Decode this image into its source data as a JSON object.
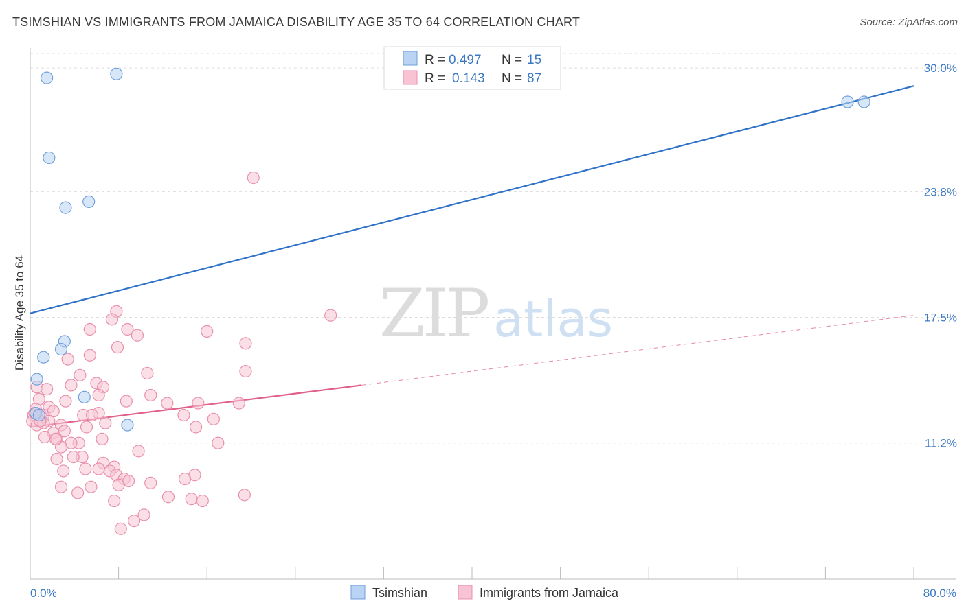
{
  "title": "TSIMSHIAN VS IMMIGRANTS FROM JAMAICA DISABILITY AGE 35 TO 64 CORRELATION CHART",
  "source": "Source: ZipAtlas.com",
  "colors": {
    "blue_fill": "#b8d3f3",
    "blue_stroke": "#6f9fdb",
    "blue_line": "#2f72c8",
    "pink_fill": "#f8c4d4",
    "pink_stroke": "#e890ad",
    "pink_line": "#e0608b",
    "grid": "#dddddd",
    "axis_text": "#3b78c4"
  },
  "watermark": {
    "zip": "ZIP",
    "atlas": "atlas"
  },
  "legend": {
    "rows": [
      {
        "r_label": "R =",
        "r_value": "0.497",
        "n_label": "N =",
        "n_value": "15"
      },
      {
        "r_label": "R =",
        "r_value": "0.143",
        "n_label": "N =",
        "n_value": "87"
      }
    ]
  },
  "chart_data": {
    "type": "scatter",
    "title": "TSIMSHIAN VS IMMIGRANTS FROM JAMAICA DISABILITY AGE 35 TO 64 CORRELATION CHART",
    "xlabel": "",
    "ylabel": "Disability Age 35 to 64",
    "xlim": [
      0,
      80
    ],
    "ylim": [
      5.0,
      31.0
    ],
    "x_tick_labels": [
      "0.0%",
      "80.0%"
    ],
    "y_ticks": [
      30.0,
      23.8,
      17.5,
      11.2
    ],
    "y_tick_labels": [
      "30.0%",
      "23.8%",
      "17.5%",
      "11.2%"
    ],
    "grid": true,
    "legend_position": "top-center",
    "series": [
      {
        "name": "Tsimshian",
        "r": 0.497,
        "n": 15,
        "trend": {
          "x0": 0,
          "y0": 17.7,
          "x1": 80,
          "y1": 29.1,
          "dashed_from": null
        },
        "points": [
          [
            1.5,
            29.5
          ],
          [
            7.8,
            29.7
          ],
          [
            1.7,
            25.5
          ],
          [
            3.2,
            23.0
          ],
          [
            5.3,
            23.3
          ],
          [
            3.1,
            16.3
          ],
          [
            1.2,
            15.5
          ],
          [
            2.8,
            15.9
          ],
          [
            0.6,
            14.4
          ],
          [
            4.9,
            13.5
          ],
          [
            8.8,
            12.1
          ],
          [
            0.5,
            12.7
          ],
          [
            74.0,
            28.3
          ],
          [
            75.5,
            28.3
          ],
          [
            0.8,
            12.6
          ]
        ]
      },
      {
        "name": "Immigrants from Jamaica",
        "r": 0.143,
        "n": 87,
        "trend": {
          "x0": 0,
          "y0": 12.0,
          "x1": 80,
          "y1": 17.6,
          "dashed_from": 30
        },
        "points": [
          [
            20.2,
            24.5
          ],
          [
            27.2,
            17.6
          ],
          [
            7.8,
            17.8
          ],
          [
            7.4,
            17.4
          ],
          [
            5.4,
            16.9
          ],
          [
            8.8,
            16.9
          ],
          [
            9.7,
            16.6
          ],
          [
            16.0,
            16.8
          ],
          [
            19.5,
            16.2
          ],
          [
            7.9,
            16.0
          ],
          [
            5.4,
            15.6
          ],
          [
            3.4,
            15.4
          ],
          [
            4.5,
            14.6
          ],
          [
            10.6,
            14.7
          ],
          [
            19.5,
            14.8
          ],
          [
            6.0,
            14.2
          ],
          [
            6.6,
            14.0
          ],
          [
            0.6,
            14.0
          ],
          [
            3.7,
            14.1
          ],
          [
            1.5,
            13.9
          ],
          [
            6.2,
            13.6
          ],
          [
            10.9,
            13.6
          ],
          [
            0.8,
            13.4
          ],
          [
            3.2,
            13.3
          ],
          [
            8.7,
            13.3
          ],
          [
            12.4,
            13.2
          ],
          [
            15.2,
            13.2
          ],
          [
            18.9,
            13.2
          ],
          [
            1.7,
            13.0
          ],
          [
            0.5,
            12.9
          ],
          [
            2.1,
            12.8
          ],
          [
            6.2,
            12.7
          ],
          [
            13.9,
            12.6
          ],
          [
            4.8,
            12.6
          ],
          [
            5.6,
            12.6
          ],
          [
            1.2,
            12.6
          ],
          [
            0.3,
            12.6
          ],
          [
            1.0,
            12.5
          ],
          [
            0.2,
            12.3
          ],
          [
            1.7,
            12.3
          ],
          [
            16.6,
            12.4
          ],
          [
            6.8,
            12.2
          ],
          [
            2.8,
            12.1
          ],
          [
            5.1,
            12.0
          ],
          [
            0.6,
            12.1
          ],
          [
            15.0,
            12.0
          ],
          [
            2.1,
            11.7
          ],
          [
            1.3,
            11.5
          ],
          [
            3.1,
            11.8
          ],
          [
            2.4,
            11.4
          ],
          [
            6.5,
            11.4
          ],
          [
            4.4,
            11.2
          ],
          [
            3.7,
            11.2
          ],
          [
            2.8,
            11.0
          ],
          [
            2.3,
            11.4
          ],
          [
            17.0,
            11.2
          ],
          [
            0.4,
            12.7
          ],
          [
            1.2,
            12.2
          ],
          [
            9.8,
            10.8
          ],
          [
            4.7,
            10.5
          ],
          [
            3.9,
            10.5
          ],
          [
            2.4,
            10.4
          ],
          [
            6.6,
            10.2
          ],
          [
            7.6,
            10.0
          ],
          [
            3.0,
            9.8
          ],
          [
            5.0,
            9.9
          ],
          [
            7.2,
            9.8
          ],
          [
            6.2,
            9.9
          ],
          [
            7.8,
            9.6
          ],
          [
            8.5,
            9.4
          ],
          [
            14.9,
            9.6
          ],
          [
            14.0,
            9.4
          ],
          [
            8.9,
            9.3
          ],
          [
            2.8,
            9.0
          ],
          [
            10.9,
            9.2
          ],
          [
            5.5,
            9.0
          ],
          [
            8.0,
            9.1
          ],
          [
            4.3,
            8.7
          ],
          [
            12.5,
            8.5
          ],
          [
            14.6,
            8.4
          ],
          [
            19.4,
            8.6
          ],
          [
            15.6,
            8.3
          ],
          [
            7.6,
            8.3
          ],
          [
            10.3,
            7.6
          ],
          [
            9.4,
            7.3
          ],
          [
            0.9,
            12.3
          ],
          [
            8.2,
            6.9
          ]
        ]
      }
    ]
  }
}
